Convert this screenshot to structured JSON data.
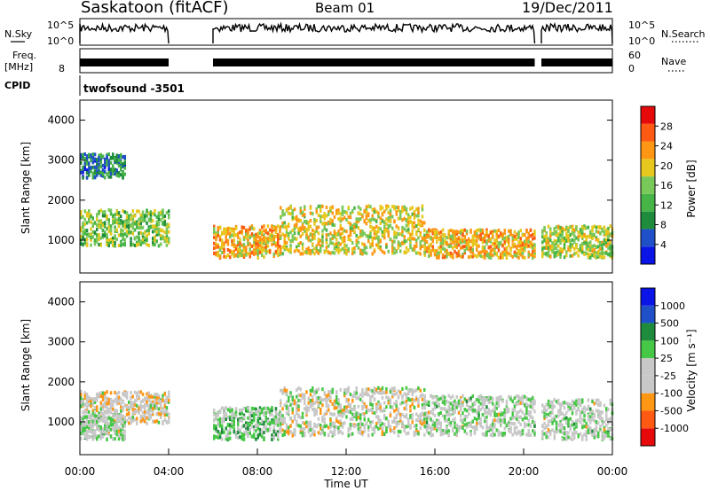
{
  "header": {
    "station": "Saskatoon (fitACF)",
    "beam": "Beam 01",
    "date": "19/Dec/2011"
  },
  "status_panels": {
    "nsky_label": "N.Sky",
    "nsearch_label": "N.Search",
    "nsky_ticks": [
      "10^5",
      "10^0"
    ],
    "nsearch_ticks": [
      "10^5",
      "10^0"
    ],
    "freq_label_line1": "Freq.",
    "freq_label_line2": "[MHz]",
    "freq_ticks": [
      "8"
    ],
    "nave_label": "Nave",
    "nave_ticks": [
      "60",
      "0"
    ],
    "cpid_label": "CPID",
    "cpid_value": "twofsound -3501"
  },
  "colors": {
    "power": [
      "#0a14e6",
      "#2050c8",
      "#1e8c3c",
      "#46b446",
      "#78c85a",
      "#e6c81e",
      "#ff9614",
      "#ff5a14",
      "#e60a0a"
    ],
    "velocity": [
      "#e60a0a",
      "#ff5a14",
      "#ff9614",
      "#c8c8c8",
      "#c8c8c8",
      "#46c846",
      "#1e8c3c",
      "#2050c8",
      "#0a14e6"
    ]
  },
  "chart_data": [
    {
      "type": "heatmap",
      "title": "Power",
      "ylabel": "Slant Range [km]",
      "xlabel": "",
      "yticks": [
        "4000",
        "3000",
        "2000",
        "1000"
      ],
      "ylim": [
        180,
        4500
      ],
      "colorbar": {
        "label": "Power [dB]",
        "ticks": [
          "28",
          "24",
          "20",
          "16",
          "12",
          "8",
          "4"
        ],
        "range": [
          0,
          30
        ]
      },
      "echo_regions": [
        {
          "t_start": 0.0,
          "t_end": 4.0,
          "r_center": 1350,
          "r_width": 450,
          "value": 14
        },
        {
          "t_start": 0.0,
          "t_end": 2.0,
          "r_center": 2900,
          "r_width": 300,
          "value": 8
        },
        {
          "t_start": 6.0,
          "t_end": 9.0,
          "r_center": 1000,
          "r_width": 400,
          "value": 20
        },
        {
          "t_start": 9.0,
          "t_end": 15.5,
          "r_center": 1300,
          "r_width": 600,
          "value": 18
        },
        {
          "t_start": 15.5,
          "t_end": 20.5,
          "r_center": 950,
          "r_width": 350,
          "value": 20
        },
        {
          "t_start": 20.8,
          "t_end": 24.0,
          "r_center": 1000,
          "r_width": 400,
          "value": 16
        }
      ]
    },
    {
      "type": "heatmap",
      "title": "Velocity",
      "ylabel": "Slant Range [km]",
      "xlabel": "Time UT",
      "xticks": [
        "00:00",
        "04:00",
        "08:00",
        "12:00",
        "16:00",
        "20:00",
        "00:00"
      ],
      "yticks": [
        "4000",
        "3000",
        "2000",
        "1000"
      ],
      "ylim": [
        180,
        4500
      ],
      "colorbar": {
        "label": "Velocity [m s⁻¹]",
        "ticks": [
          "1000",
          "500",
          "100",
          "25",
          "-25",
          "-100",
          "-500",
          "-1000"
        ],
        "range": [
          -1000,
          1000
        ]
      },
      "echo_regions": [
        {
          "t_start": 0.0,
          "t_end": 4.0,
          "r_center": 1400,
          "r_width": 400,
          "value": -150
        },
        {
          "t_start": 0.0,
          "t_end": 2.0,
          "r_center": 900,
          "r_width": 300,
          "value": 0
        },
        {
          "t_start": 6.0,
          "t_end": 9.0,
          "r_center": 1000,
          "r_width": 400,
          "value": 150
        },
        {
          "t_start": 9.0,
          "t_end": 15.5,
          "r_center": 1300,
          "r_width": 600,
          "value": -100
        },
        {
          "t_start": 15.5,
          "t_end": 20.5,
          "r_center": 1200,
          "r_width": 500,
          "value": 0
        },
        {
          "t_start": 20.8,
          "t_end": 24.0,
          "r_center": 1100,
          "r_width": 500,
          "value": 0
        }
      ]
    }
  ]
}
